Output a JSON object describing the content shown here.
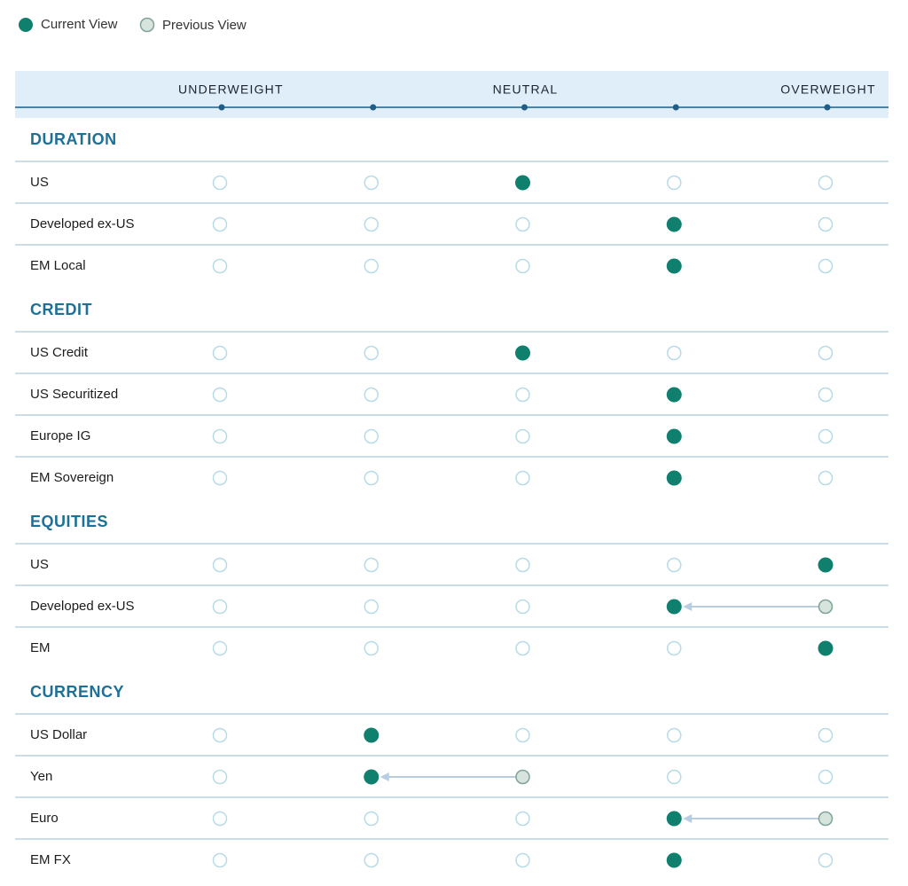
{
  "legend": {
    "current": "Current View",
    "previous": "Previous View"
  },
  "scale": {
    "ticks": [
      0,
      1,
      2,
      3,
      4
    ],
    "labels": [
      {
        "label": "UNDERWEIGHT",
        "position": 0
      },
      {
        "label": "NEUTRAL",
        "position": 2
      },
      {
        "label": "OVERWEIGHT",
        "position": 4
      }
    ]
  },
  "colors": {
    "current": "#0f7f6e",
    "previous": "#d6e4dd",
    "empty": "#b7dbe6",
    "arrow": "#b9cde2"
  },
  "sections": [
    {
      "title": "DURATION",
      "rows": [
        {
          "label": "US",
          "current": 2
        },
        {
          "label": "Developed ex-US",
          "current": 3
        },
        {
          "label": "EM Local",
          "current": 3
        }
      ]
    },
    {
      "title": "CREDIT",
      "rows": [
        {
          "label": "US Credit",
          "current": 2
        },
        {
          "label": "US Securitized",
          "current": 3
        },
        {
          "label": "Europe IG",
          "current": 3
        },
        {
          "label": "EM Sovereign",
          "current": 3
        }
      ]
    },
    {
      "title": "EQUITIES",
      "rows": [
        {
          "label": "US",
          "current": 4
        },
        {
          "label": "Developed ex-US",
          "current": 3,
          "previous": 4
        },
        {
          "label": "EM",
          "current": 4
        }
      ]
    },
    {
      "title": "CURRENCY",
      "rows": [
        {
          "label": "US Dollar",
          "current": 1
        },
        {
          "label": "Yen",
          "current": 1,
          "previous": 2
        },
        {
          "label": "Euro",
          "current": 3,
          "previous": 4
        },
        {
          "label": "EM FX",
          "current": 3
        }
      ]
    }
  ]
}
